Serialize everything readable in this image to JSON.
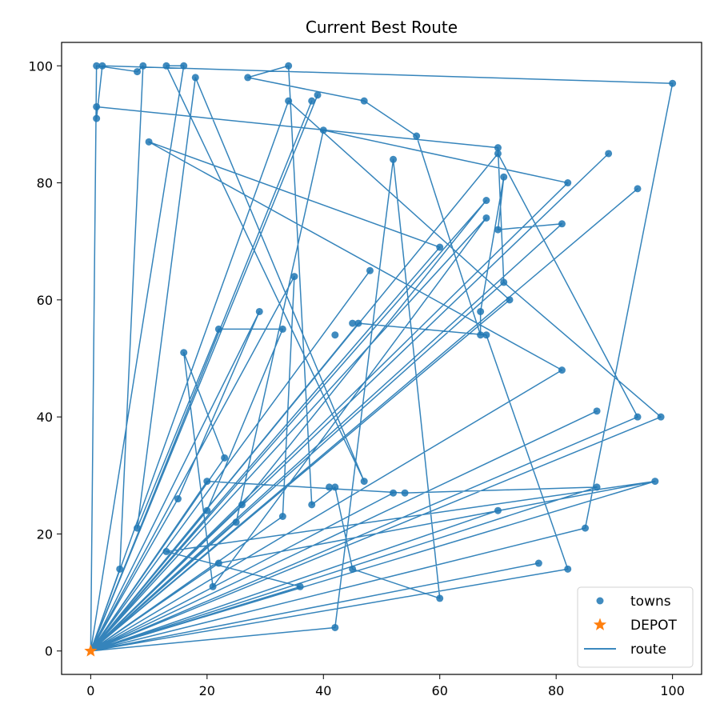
{
  "chart_data": {
    "type": "scatter",
    "title": "Current Best Route",
    "xlabel": "",
    "ylabel": "",
    "xlim": [
      -5,
      105
    ],
    "ylim": [
      -4,
      104
    ],
    "xticks": [
      0,
      20,
      40,
      60,
      80,
      100
    ],
    "yticks": [
      0,
      20,
      40,
      60,
      80,
      100
    ],
    "grid": false,
    "legend": {
      "placement": "bottom-right",
      "entries": [
        {
          "name": "towns",
          "marker": "circle",
          "color": "#1f77b4"
        },
        {
          "name": "DEPOT",
          "marker": "star",
          "color": "#ff7f0e"
        },
        {
          "name": "route",
          "marker": "line",
          "color": "#1f77b4"
        }
      ]
    },
    "colors": {
      "route": "#1f77b4",
      "towns": "#1f77b4",
      "depot": "#ff7f0e"
    },
    "depot": [
      0,
      0
    ],
    "route": [
      [
        0,
        0
      ],
      [
        42,
        4
      ],
      [
        52,
        84
      ],
      [
        60,
        9
      ],
      [
        45,
        14
      ],
      [
        42,
        28
      ],
      [
        38,
        25
      ],
      [
        34,
        100
      ],
      [
        27,
        98
      ],
      [
        47,
        94
      ],
      [
        56,
        88
      ],
      [
        67,
        54
      ],
      [
        67,
        58
      ],
      [
        71,
        81
      ],
      [
        70,
        72
      ],
      [
        81,
        73
      ],
      [
        0,
        0
      ],
      [
        68,
        74
      ],
      [
        21,
        11
      ],
      [
        16,
        51
      ],
      [
        23,
        33
      ],
      [
        0,
        0
      ],
      [
        15,
        26
      ],
      [
        29,
        58
      ],
      [
        0,
        0
      ],
      [
        81,
        48
      ],
      [
        10,
        87
      ],
      [
        60,
        69
      ],
      [
        0,
        0
      ],
      [
        70,
        85
      ],
      [
        94,
        40
      ],
      [
        0,
        0
      ],
      [
        39,
        95
      ],
      [
        0,
        0
      ],
      [
        94,
        79
      ],
      [
        0,
        0
      ],
      [
        71,
        63
      ],
      [
        70,
        86
      ],
      [
        1,
        93
      ],
      [
        1,
        91
      ],
      [
        2,
        100
      ],
      [
        100,
        97
      ],
      [
        85,
        21
      ],
      [
        0,
        0
      ],
      [
        97,
        29
      ],
      [
        22,
        15
      ],
      [
        0,
        0
      ],
      [
        97,
        29
      ],
      [
        13,
        17
      ],
      [
        36,
        11
      ],
      [
        0,
        0
      ],
      [
        82,
        14
      ],
      [
        68,
        54
      ],
      [
        46,
        56
      ],
      [
        0,
        0
      ],
      [
        89,
        85
      ],
      [
        0,
        0
      ],
      [
        68,
        77
      ],
      [
        26,
        25
      ],
      [
        0,
        0
      ],
      [
        0,
        0
      ],
      [
        33,
        23
      ],
      [
        35,
        64
      ],
      [
        0,
        0
      ],
      [
        5,
        14
      ],
      [
        9,
        100
      ],
      [
        8,
        99
      ],
      [
        1,
        100
      ],
      [
        0,
        0
      ],
      [
        38,
        94
      ],
      [
        0,
        0
      ],
      [
        48,
        65
      ],
      [
        0,
        0
      ],
      [
        25,
        22
      ],
      [
        40,
        89
      ],
      [
        82,
        80
      ],
      [
        0,
        0
      ],
      [
        72,
        60
      ],
      [
        34,
        94
      ],
      [
        0,
        0
      ],
      [
        16,
        100
      ],
      [
        13,
        100
      ],
      [
        47,
        29
      ],
      [
        18,
        98
      ],
      [
        8,
        21
      ],
      [
        22,
        55
      ],
      [
        33,
        55
      ],
      [
        20,
        24
      ],
      [
        0,
        0
      ],
      [
        87,
        41
      ],
      [
        0,
        0
      ],
      [
        20,
        29
      ],
      [
        54,
        27
      ],
      [
        87,
        28
      ],
      [
        0,
        0
      ],
      [
        77,
        15
      ],
      [
        0,
        0
      ],
      [
        70,
        24
      ],
      [
        0,
        0
      ],
      [
        0,
        0
      ],
      [
        98,
        40
      ],
      [
        71,
        63
      ],
      [
        0,
        0
      ],
      [
        52,
        27
      ],
      [
        0,
        0
      ]
    ],
    "towns": [
      [
        1,
        100
      ],
      [
        2,
        100
      ],
      [
        9,
        100
      ],
      [
        13,
        100
      ],
      [
        16,
        100
      ],
      [
        34,
        100
      ],
      [
        8,
        99
      ],
      [
        27,
        98
      ],
      [
        18,
        98
      ],
      [
        100,
        97
      ],
      [
        39,
        95
      ],
      [
        34,
        94
      ],
      [
        38,
        94
      ],
      [
        47,
        94
      ],
      [
        1,
        93
      ],
      [
        1,
        91
      ],
      [
        40,
        89
      ],
      [
        56,
        88
      ],
      [
        10,
        87
      ],
      [
        70,
        86
      ],
      [
        70,
        85
      ],
      [
        89,
        85
      ],
      [
        52,
        84
      ],
      [
        71,
        81
      ],
      [
        82,
        80
      ],
      [
        94,
        79
      ],
      [
        68,
        77
      ],
      [
        68,
        74
      ],
      [
        81,
        73
      ],
      [
        70,
        72
      ],
      [
        60,
        69
      ],
      [
        48,
        65
      ],
      [
        35,
        64
      ],
      [
        71,
        63
      ],
      [
        72,
        60
      ],
      [
        29,
        58
      ],
      [
        67,
        58
      ],
      [
        45,
        56
      ],
      [
        46,
        56
      ],
      [
        22,
        55
      ],
      [
        33,
        55
      ],
      [
        42,
        54
      ],
      [
        67,
        54
      ],
      [
        68,
        54
      ],
      [
        16,
        51
      ],
      [
        81,
        48
      ],
      [
        87,
        41
      ],
      [
        94,
        40
      ],
      [
        98,
        40
      ],
      [
        23,
        33
      ],
      [
        20,
        29
      ],
      [
        47,
        29
      ],
      [
        97,
        29
      ],
      [
        42,
        28
      ],
      [
        41,
        28
      ],
      [
        87,
        28
      ],
      [
        52,
        27
      ],
      [
        54,
        27
      ],
      [
        15,
        26
      ],
      [
        38,
        25
      ],
      [
        26,
        25
      ],
      [
        20,
        24
      ],
      [
        70,
        24
      ],
      [
        33,
        23
      ],
      [
        25,
        22
      ],
      [
        8,
        21
      ],
      [
        85,
        21
      ],
      [
        13,
        17
      ],
      [
        22,
        15
      ],
      [
        77,
        15
      ],
      [
        5,
        14
      ],
      [
        45,
        14
      ],
      [
        82,
        14
      ],
      [
        21,
        11
      ],
      [
        36,
        11
      ],
      [
        60,
        9
      ],
      [
        42,
        4
      ]
    ]
  }
}
